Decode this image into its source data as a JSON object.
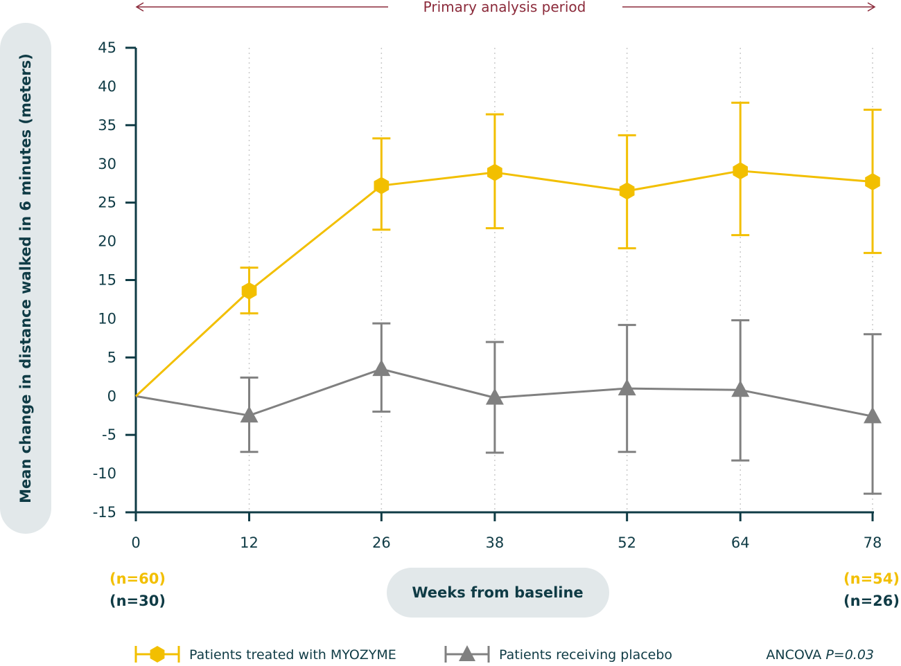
{
  "chart_data": {
    "type": "line",
    "annotation_period": "Primary analysis period",
    "ylabel": "Mean change in distance walked in 6 minutes (meters)",
    "xlabel": "Weeks from baseline",
    "ylim": [
      -15,
      45
    ],
    "yticks": [
      45,
      40,
      35,
      30,
      25,
      20,
      15,
      10,
      5,
      0,
      -5,
      -10,
      -15
    ],
    "x": [
      0,
      12,
      26,
      38,
      52,
      64,
      78
    ],
    "series": [
      {
        "name": "Patients treated with MYOZYME",
        "color": "#f2bf00",
        "marker": "hexagon",
        "values": [
          0,
          13.6,
          27.2,
          28.9,
          26.5,
          29.1,
          27.7
        ],
        "err_low": [
          0,
          10.7,
          21.5,
          21.7,
          19.1,
          20.8,
          18.5
        ],
        "err_high": [
          0,
          16.6,
          33.3,
          36.4,
          33.7,
          37.9,
          37.0
        ]
      },
      {
        "name": "Patients receiving placebo",
        "color": "#808080",
        "marker": "triangle",
        "values": [
          0,
          -2.5,
          3.5,
          -0.2,
          1.0,
          0.8,
          -2.6
        ],
        "err_low": [
          0,
          -7.2,
          -2.0,
          -7.3,
          -7.2,
          -8.3,
          -12.6
        ],
        "err_high": [
          0,
          2.4,
          9.4,
          7.0,
          9.2,
          9.8,
          8.0
        ]
      }
    ],
    "n_left": {
      "treated": "(n=60)",
      "placebo": "(n=30)"
    },
    "n_right": {
      "treated": "(n=54)",
      "placebo": "(n=26)"
    },
    "stat_prefix": "ANCOVA ",
    "stat_value": "P=0.03",
    "colors": {
      "axis": "#0f3b45",
      "period": "#8b2a3a",
      "pill": "#e2e8ea"
    }
  }
}
